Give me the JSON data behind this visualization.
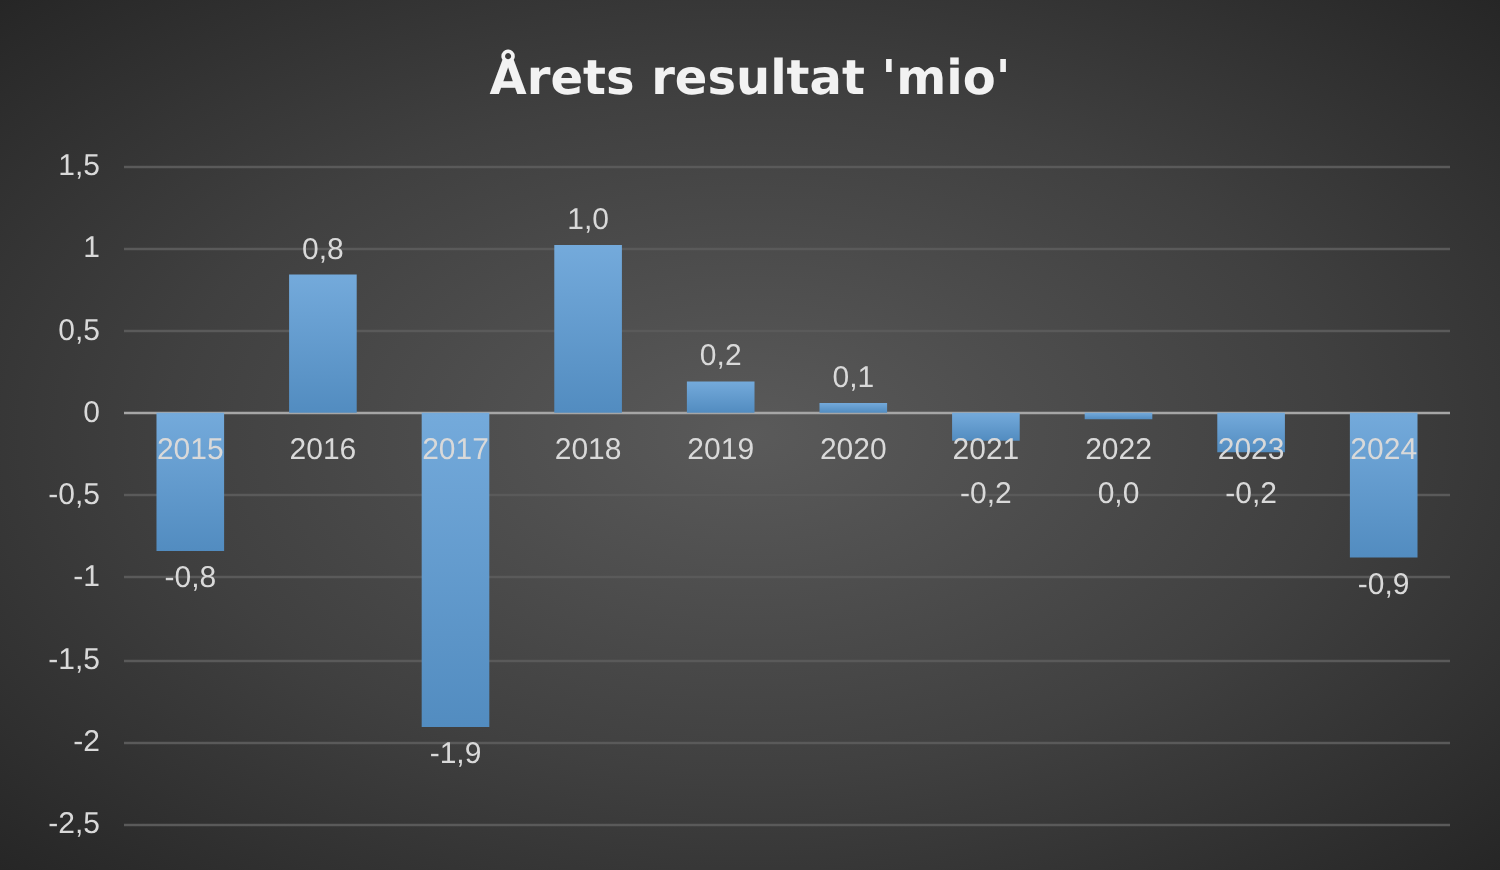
{
  "chart_data": {
    "type": "bar",
    "title": "Årets resultat 'mio'",
    "categories": [
      "2015",
      "2016",
      "2017",
      "2018",
      "2019",
      "2020",
      "2021",
      "2022",
      "2023",
      "2024"
    ],
    "values": [
      -0.84,
      0.84,
      -1.91,
      1.02,
      0.19,
      0.06,
      -0.17,
      -0.04,
      -0.24,
      -0.88
    ],
    "value_labels": [
      "-0,8",
      "0,8",
      "-1,9",
      "1,0",
      "0,2",
      "0,1",
      "-0,2",
      "0,0",
      "-0,2",
      "-0,9"
    ],
    "color": "#5b9bd5",
    "ylim": [
      -2.5,
      1.5
    ],
    "yticks": [
      {
        "value": -2.5,
        "label": "-2,5"
      },
      -2,
      {
        "value": -1.5,
        "label": "-1,5"
      },
      -1,
      {
        "value": -0.5,
        "label": "-0,5"
      },
      0,
      {
        "value": 0.5,
        "label": "0,5"
      },
      1,
      {
        "value": 1.5,
        "label": "1,5"
      }
    ],
    "grid": "y"
  }
}
